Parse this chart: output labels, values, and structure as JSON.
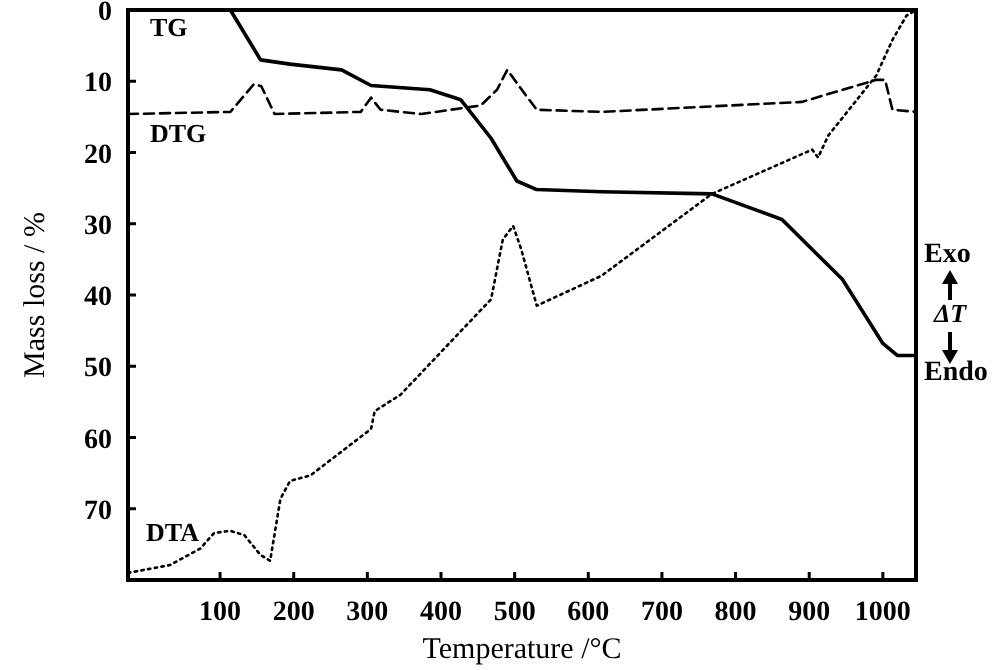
{
  "chart_data": {
    "type": "line",
    "xlabel": "Temperature /°C",
    "ylabel": "Mass loss / %",
    "y2label": "ΔT",
    "annotations": [
      "Exo",
      "Endo"
    ],
    "xlim": [
      -25,
      1045
    ],
    "xticks": [
      100,
      200,
      300,
      400,
      500,
      600,
      700,
      800,
      900,
      1000
    ],
    "ylim": [
      80,
      0
    ],
    "yticks": [
      0,
      10,
      20,
      30,
      40,
      50,
      60,
      70
    ],
    "grid": false,
    "series": [
      {
        "name": "TG",
        "color": "#000000",
        "line_style": "solid",
        "x": [
          -25,
          114,
          155,
          195,
          265,
          305,
          385,
          427,
          468,
          503,
          530,
          618,
          768,
          863,
          945,
          1000,
          1020,
          1045
        ],
        "values": [
          0,
          0,
          7,
          7.6,
          8.4,
          10.6,
          11.2,
          12.6,
          18,
          24,
          25.2,
          25.5,
          25.8,
          29.4,
          37.8,
          46.8,
          48.5,
          48.5
        ]
      },
      {
        "name": "DTG",
        "color": "#000000",
        "line_style": "dashed",
        "x": [
          -25,
          114,
          146,
          156,
          174,
          291,
          305,
          318,
          373,
          454,
          476,
          490,
          514,
          530,
          618,
          890,
          991,
          1003,
          1013,
          1045
        ],
        "values": [
          14.6,
          14.3,
          10.4,
          10.7,
          14.6,
          14.3,
          12.3,
          14,
          14.6,
          13.4,
          11.2,
          8.4,
          11.8,
          14,
          14.3,
          12.9,
          9.8,
          9.8,
          14,
          14.3
        ]
      },
      {
        "name": "DTA",
        "color": "#000000",
        "line_style": "dotted",
        "x": [
          -25,
          32,
          73,
          92,
          114,
          133,
          155,
          168,
          182,
          195,
          223,
          305,
          310,
          345,
          468,
          484,
          498,
          509,
          530,
          618,
          768,
          904,
          912,
          926,
          991,
          1013,
          1032,
          1045
        ],
        "values": [
          79,
          77.9,
          75.6,
          73.4,
          73.1,
          73.7,
          76.5,
          77.3,
          68.6,
          66.1,
          65.3,
          58.8,
          56.3,
          54,
          40.6,
          32.2,
          30.3,
          33.6,
          41.5,
          37.3,
          25.8,
          19.6,
          20.7,
          17.6,
          9.2,
          4.2,
          0.8,
          0
        ]
      }
    ]
  }
}
